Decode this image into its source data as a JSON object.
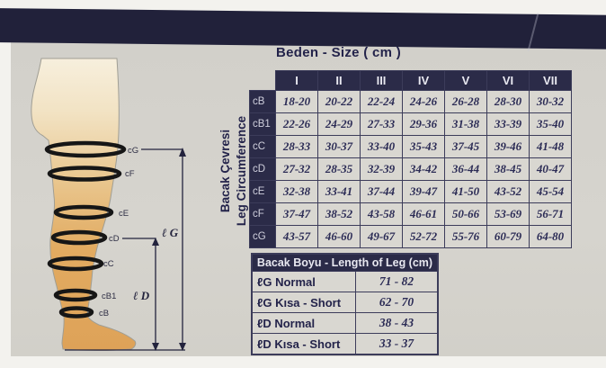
{
  "size_table": {
    "title": "Beden - Size ( cm )",
    "side_label_line1": "Bacak Çevresi",
    "side_label_line2": "Leg Circumference",
    "columns": [
      "I",
      "II",
      "III",
      "IV",
      "V",
      "VI",
      "VII"
    ],
    "rows": [
      {
        "label": "cB",
        "values": [
          "18-20",
          "20-22",
          "22-24",
          "24-26",
          "26-28",
          "28-30",
          "30-32"
        ]
      },
      {
        "label": "cB1",
        "values": [
          "22-26",
          "24-29",
          "27-33",
          "29-36",
          "31-38",
          "33-39",
          "35-40"
        ]
      },
      {
        "label": "cC",
        "values": [
          "28-33",
          "30-37",
          "33-40",
          "35-43",
          "37-45",
          "39-46",
          "41-48"
        ]
      },
      {
        "label": "cD",
        "values": [
          "27-32",
          "28-35",
          "32-39",
          "34-42",
          "36-44",
          "38-45",
          "40-47"
        ]
      },
      {
        "label": "cE",
        "values": [
          "32-38",
          "33-41",
          "37-44",
          "39-47",
          "41-50",
          "43-52",
          "45-54"
        ]
      },
      {
        "label": "cF",
        "values": [
          "37-47",
          "38-52",
          "43-58",
          "46-61",
          "50-66",
          "53-69",
          "56-71"
        ]
      },
      {
        "label": "cG",
        "values": [
          "43-57",
          "46-60",
          "49-67",
          "52-72",
          "55-76",
          "60-79",
          "64-80"
        ]
      }
    ]
  },
  "length_table": {
    "title": "Bacak Boyu - Length of Leg (cm)",
    "rows": [
      {
        "label": "ℓG Normal",
        "value": "71 - 82"
      },
      {
        "label": "ℓG Kısa - Short",
        "value": "62 - 70"
      },
      {
        "label": "ℓD Normal",
        "value": "38 - 43"
      },
      {
        "label": "ℓD Kısa - Short",
        "value": "33 - 37"
      }
    ]
  },
  "leg_diagram": {
    "band_labels": [
      "cG",
      "cF",
      "cE",
      "cD",
      "cC",
      "cB1",
      "cB"
    ],
    "length_labels": [
      "ℓ G",
      "ℓ D"
    ]
  },
  "colors": {
    "topbar": "#21213a",
    "card_bg": "#d3d1cb",
    "header_navy": "#2b2b48",
    "text_navy": "#23234a",
    "skin_tan": "#e2ab61"
  }
}
